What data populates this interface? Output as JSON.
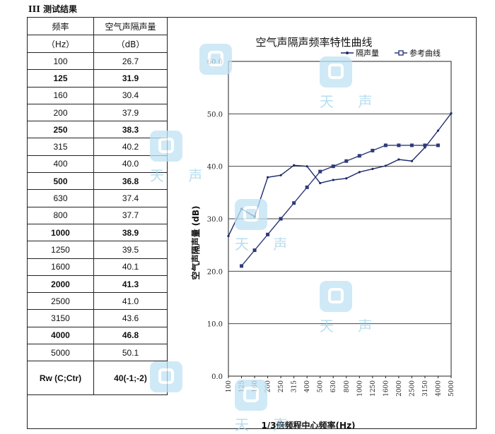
{
  "heading": "III 测试结果",
  "table": {
    "header_freq": "频率",
    "header_freq_unit": "（Hz）",
    "header_val": "空气声隔声量",
    "header_val_unit": "（dB）",
    "rows": [
      {
        "freq": "100",
        "value": "26.7",
        "bold": false
      },
      {
        "freq": "125",
        "value": "31.9",
        "bold": true
      },
      {
        "freq": "160",
        "value": "30.4",
        "bold": false
      },
      {
        "freq": "200",
        "value": "37.9",
        "bold": false
      },
      {
        "freq": "250",
        "value": "38.3",
        "bold": true
      },
      {
        "freq": "315",
        "value": "40.2",
        "bold": false
      },
      {
        "freq": "400",
        "value": "40.0",
        "bold": false
      },
      {
        "freq": "500",
        "value": "36.8",
        "bold": true
      },
      {
        "freq": "630",
        "value": "37.4",
        "bold": false
      },
      {
        "freq": "800",
        "value": "37.7",
        "bold": false
      },
      {
        "freq": "1000",
        "value": "38.9",
        "bold": true
      },
      {
        "freq": "1250",
        "value": "39.5",
        "bold": false
      },
      {
        "freq": "1600",
        "value": "40.1",
        "bold": false
      },
      {
        "freq": "2000",
        "value": "41.3",
        "bold": true
      },
      {
        "freq": "2500",
        "value": "41.0",
        "bold": false
      },
      {
        "freq": "3150",
        "value": "43.6",
        "bold": false
      },
      {
        "freq": "4000",
        "value": "46.8",
        "bold": true
      },
      {
        "freq": "5000",
        "value": "50.1",
        "bold": false
      }
    ],
    "rw_label": "Rw (C;Ctr)",
    "rw_value": "40(-1;-2)"
  },
  "watermark": {
    "text": "天 声"
  },
  "chart_data": {
    "type": "line",
    "title": "空气声隔声频率特性曲线",
    "xlabel": "1/3倍频程中心频率(Hz)",
    "ylabel": "空气声隔声量 (dB)",
    "ylim": [
      0,
      60
    ],
    "yticks": [
      "0.0",
      "10.0",
      "20.0",
      "30.0",
      "40.0",
      "50.0",
      "60.0"
    ],
    "categories": [
      "100",
      "125",
      "160",
      "200",
      "250",
      "315",
      "400",
      "500",
      "630",
      "800",
      "1000",
      "1250",
      "1600",
      "2000",
      "2500",
      "3150",
      "4000",
      "5000"
    ],
    "legend_position": "top-right",
    "grid": "horizontal",
    "series": [
      {
        "name": "隔声量",
        "color": "#1f2a6b",
        "marker": "dot",
        "values": [
          26.7,
          31.9,
          30.4,
          37.9,
          38.3,
          40.2,
          40.0,
          36.8,
          37.4,
          37.7,
          38.9,
          39.5,
          40.1,
          41.3,
          41.0,
          43.6,
          46.8,
          50.1
        ]
      },
      {
        "name": "参考曲线",
        "color": "#2e3a78",
        "marker": "square",
        "values": [
          null,
          21,
          24,
          27,
          30,
          33,
          36,
          39,
          40,
          41,
          42,
          43,
          44,
          44,
          44,
          44,
          44,
          null
        ]
      }
    ]
  }
}
